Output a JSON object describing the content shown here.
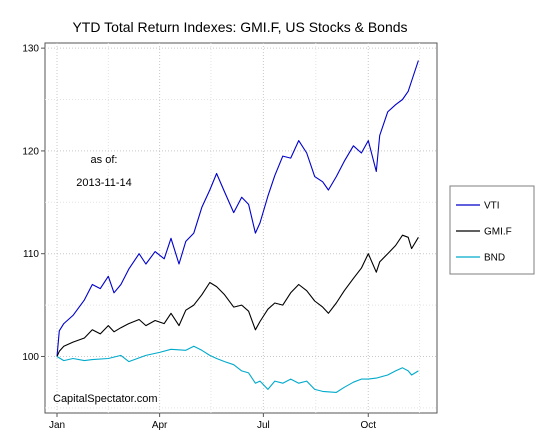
{
  "chart_data": {
    "type": "line",
    "title": "YTD Total Return Indexes: GMI.F, US Stocks & Bonds",
    "xlabel": "",
    "ylabel": "",
    "x_range": [
      "2013-01-01",
      "2013-11-18"
    ],
    "ylim": [
      94.5,
      130.5
    ],
    "y_ticks": [
      100,
      110,
      120,
      130
    ],
    "x_ticks": [
      {
        "date": "2013-01-01",
        "label": "Jan"
      },
      {
        "date": "2013-04-01",
        "label": "Apr"
      },
      {
        "date": "2013-07-01",
        "label": "Jul"
      },
      {
        "date": "2013-10-01",
        "label": "Oct"
      }
    ],
    "grid": true,
    "legend_position": "right",
    "annotations": {
      "as_of_label": "as of:",
      "as_of_date": "2013-11-14",
      "source": "CapitalSpectator.com"
    },
    "series": [
      {
        "name": "VTI",
        "color": "#0000cc",
        "x": [
          "2013-01-01",
          "2013-01-03",
          "2013-01-07",
          "2013-01-15",
          "2013-01-25",
          "2013-02-01",
          "2013-02-08",
          "2013-02-15",
          "2013-02-20",
          "2013-02-26",
          "2013-03-05",
          "2013-03-14",
          "2013-03-20",
          "2013-03-28",
          "2013-04-05",
          "2013-04-11",
          "2013-04-18",
          "2013-04-24",
          "2013-05-01",
          "2013-05-08",
          "2013-05-15",
          "2013-05-21",
          "2013-05-28",
          "2013-06-05",
          "2013-06-12",
          "2013-06-18",
          "2013-06-24",
          "2013-06-28",
          "2013-07-05",
          "2013-07-11",
          "2013-07-18",
          "2013-07-25",
          "2013-08-01",
          "2013-08-08",
          "2013-08-15",
          "2013-08-22",
          "2013-08-27",
          "2013-09-03",
          "2013-09-10",
          "2013-09-18",
          "2013-09-25",
          "2013-10-01",
          "2013-10-08",
          "2013-10-11",
          "2013-10-18",
          "2013-10-25",
          "2013-10-31",
          "2013-11-05",
          "2013-11-08",
          "2013-11-14"
        ],
        "y": [
          100.0,
          102.5,
          103.2,
          104.0,
          105.5,
          107.0,
          106.6,
          107.8,
          106.2,
          107.0,
          108.5,
          110.0,
          109.0,
          110.2,
          109.5,
          111.5,
          109.0,
          111.2,
          112.0,
          114.5,
          116.2,
          117.8,
          116.0,
          114.0,
          115.5,
          114.8,
          112.0,
          113.0,
          115.6,
          117.6,
          119.5,
          119.3,
          121.0,
          119.8,
          117.5,
          117.0,
          116.2,
          117.5,
          119.0,
          120.5,
          119.8,
          121.0,
          118.0,
          121.5,
          123.8,
          124.5,
          125.0,
          125.8,
          126.8,
          128.8
        ]
      },
      {
        "name": "GMI.F",
        "color": "#000000",
        "x": [
          "2013-01-01",
          "2013-01-03",
          "2013-01-07",
          "2013-01-15",
          "2013-01-25",
          "2013-02-01",
          "2013-02-08",
          "2013-02-15",
          "2013-02-20",
          "2013-02-26",
          "2013-03-05",
          "2013-03-14",
          "2013-03-20",
          "2013-03-28",
          "2013-04-05",
          "2013-04-11",
          "2013-04-18",
          "2013-04-24",
          "2013-05-01",
          "2013-05-08",
          "2013-05-15",
          "2013-05-21",
          "2013-05-28",
          "2013-06-05",
          "2013-06-12",
          "2013-06-18",
          "2013-06-24",
          "2013-06-28",
          "2013-07-05",
          "2013-07-11",
          "2013-07-18",
          "2013-07-25",
          "2013-08-01",
          "2013-08-08",
          "2013-08-15",
          "2013-08-22",
          "2013-08-27",
          "2013-09-03",
          "2013-09-10",
          "2013-09-18",
          "2013-09-25",
          "2013-10-01",
          "2013-10-08",
          "2013-10-11",
          "2013-10-18",
          "2013-10-25",
          "2013-10-31",
          "2013-11-05",
          "2013-11-08",
          "2013-11-14"
        ],
        "y": [
          100.0,
          100.5,
          101.0,
          101.4,
          101.8,
          102.6,
          102.2,
          103.0,
          102.4,
          102.8,
          103.2,
          103.6,
          103.0,
          103.5,
          103.2,
          104.2,
          103.0,
          104.5,
          105.0,
          106.0,
          107.2,
          106.8,
          106.0,
          104.8,
          105.0,
          104.4,
          102.6,
          103.4,
          104.6,
          105.2,
          105.0,
          106.2,
          107.0,
          106.4,
          105.4,
          104.8,
          104.2,
          105.2,
          106.4,
          107.6,
          108.6,
          110.0,
          108.2,
          109.2,
          110.0,
          110.8,
          111.8,
          111.6,
          110.5,
          111.6
        ]
      },
      {
        "name": "BND",
        "color": "#00aacc",
        "x": [
          "2013-01-01",
          "2013-01-07",
          "2013-01-15",
          "2013-01-25",
          "2013-02-01",
          "2013-02-15",
          "2013-02-26",
          "2013-03-05",
          "2013-03-20",
          "2013-04-01",
          "2013-04-11",
          "2013-04-24",
          "2013-05-01",
          "2013-05-08",
          "2013-05-15",
          "2013-05-21",
          "2013-05-28",
          "2013-06-05",
          "2013-06-12",
          "2013-06-18",
          "2013-06-24",
          "2013-06-28",
          "2013-07-05",
          "2013-07-11",
          "2013-07-18",
          "2013-07-25",
          "2013-08-01",
          "2013-08-08",
          "2013-08-15",
          "2013-08-22",
          "2013-09-03",
          "2013-09-10",
          "2013-09-18",
          "2013-09-25",
          "2013-10-01",
          "2013-10-08",
          "2013-10-18",
          "2013-10-25",
          "2013-10-31",
          "2013-11-05",
          "2013-11-08",
          "2013-11-14"
        ],
        "y": [
          100.0,
          99.6,
          99.8,
          99.6,
          99.7,
          99.8,
          100.1,
          99.5,
          100.1,
          100.4,
          100.7,
          100.6,
          101.0,
          100.6,
          100.1,
          99.8,
          99.5,
          99.2,
          98.6,
          98.4,
          97.4,
          97.6,
          96.8,
          97.6,
          97.4,
          97.8,
          97.4,
          97.6,
          96.8,
          96.6,
          96.5,
          97.0,
          97.5,
          97.8,
          97.8,
          97.9,
          98.2,
          98.6,
          98.9,
          98.6,
          98.2,
          98.6
        ]
      }
    ]
  }
}
